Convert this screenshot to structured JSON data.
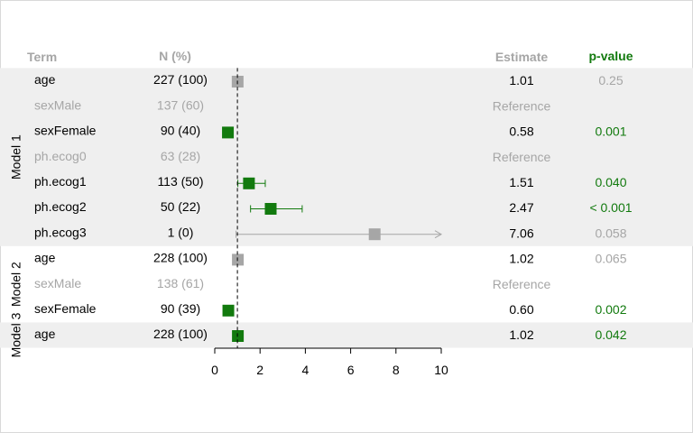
{
  "chart_data": {
    "type": "forest",
    "columns": {
      "term": "Term",
      "n": "N (%)",
      "estimate": "Estimate",
      "pvalue": "p-value"
    },
    "reference_line": 1,
    "xlim": [
      0,
      10
    ],
    "xticks": [
      0,
      2,
      4,
      6,
      8,
      10
    ],
    "colors": {
      "significant": "#127a0e",
      "nonsignificant": "#a6a6a6",
      "band": "#efefef",
      "text": "#000000"
    },
    "models": [
      {
        "label": "Model 1",
        "band": true
      },
      {
        "label": "Model 2",
        "band": false
      },
      {
        "label": "Model 3",
        "band": true
      }
    ],
    "rows": [
      {
        "model": 0,
        "term": "age",
        "n": "227 (100)",
        "estimate": 1.01,
        "estimate_label": "1.01",
        "p": "0.25",
        "ci": null,
        "style": "ns"
      },
      {
        "model": 0,
        "term": "sexMale",
        "n": "137 (60)",
        "estimate": null,
        "estimate_label": "Reference",
        "p": "",
        "ci": null,
        "style": "ref"
      },
      {
        "model": 0,
        "term": "sexFemale",
        "n": "90 (40)",
        "estimate": 0.58,
        "estimate_label": "0.58",
        "p": "0.001",
        "ci": null,
        "style": "sig"
      },
      {
        "model": 0,
        "term": "ph.ecog0",
        "n": "63 (28)",
        "estimate": null,
        "estimate_label": "Reference",
        "p": "",
        "ci": null,
        "style": "ref"
      },
      {
        "model": 0,
        "term": "ph.ecog1",
        "n": "113 (50)",
        "estimate": 1.51,
        "estimate_label": "1.51",
        "p": "0.040",
        "ci": [
          1.02,
          2.23
        ],
        "style": "sig"
      },
      {
        "model": 0,
        "term": "ph.ecog2",
        "n": "50 (22)",
        "estimate": 2.47,
        "estimate_label": "2.47",
        "p": "< 0.001",
        "ci": [
          1.58,
          3.86
        ],
        "style": "sig"
      },
      {
        "model": 0,
        "term": "ph.ecog3",
        "n": "1 (0)",
        "estimate": 7.06,
        "estimate_label": "7.06",
        "p": "0.058",
        "ci": [
          0.94,
          10
        ],
        "ci_arrow": true,
        "style": "ns"
      },
      {
        "model": 1,
        "term": "age",
        "n": "228 (100)",
        "estimate": 1.02,
        "estimate_label": "1.02",
        "p": "0.065",
        "ci": null,
        "style": "ns"
      },
      {
        "model": 1,
        "term": "sexMale",
        "n": "138 (61)",
        "estimate": null,
        "estimate_label": "Reference",
        "p": "",
        "ci": null,
        "style": "ref"
      },
      {
        "model": 1,
        "term": "sexFemale",
        "n": "90 (39)",
        "estimate": 0.6,
        "estimate_label": "0.60",
        "p": "0.002",
        "ci": null,
        "style": "sig"
      },
      {
        "model": 2,
        "term": "age",
        "n": "228 (100)",
        "estimate": 1.02,
        "estimate_label": "1.02",
        "p": "0.042",
        "ci": null,
        "style": "sig"
      }
    ]
  }
}
